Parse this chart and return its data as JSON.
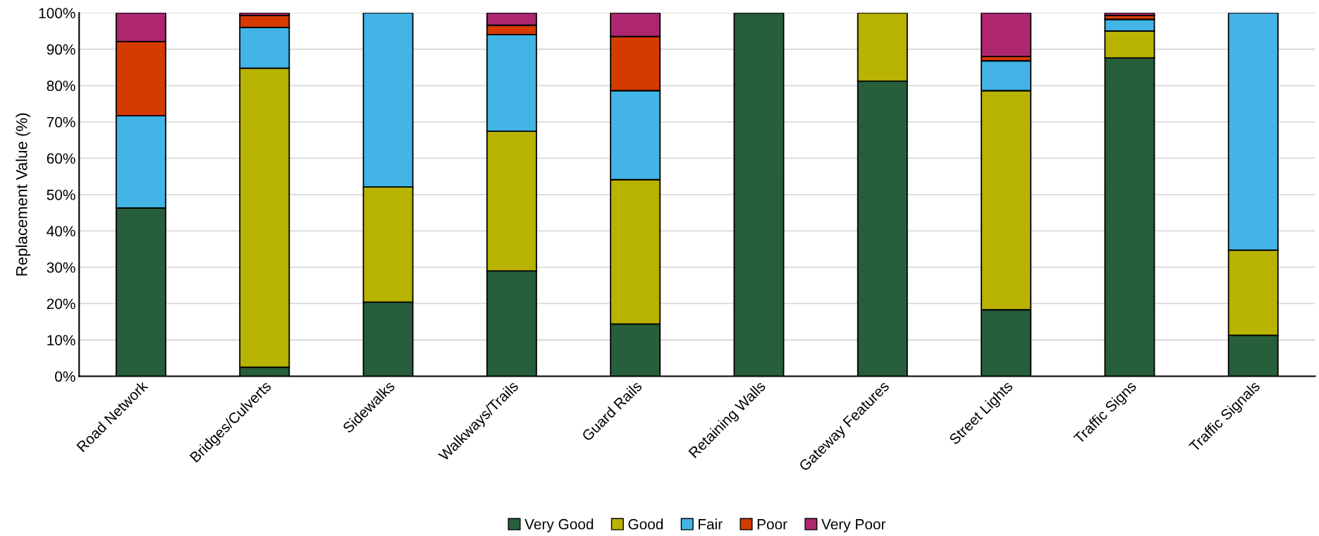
{
  "chart_data": {
    "type": "bar",
    "stacked": true,
    "ylabel": "Replacement Value (%)",
    "categories": [
      "Road Network",
      "Bridges/Culverts",
      "Sidewalks",
      "Walkways/Trails",
      "Guard Rails",
      "Retaining Walls",
      "Gateway Features",
      "Street Lights",
      "Traffic Signs",
      "Traffic Signals"
    ],
    "series": [
      {
        "name": "Very Good",
        "color": "#275e3b",
        "values": [
          46.3,
          2.5,
          20.4,
          29.0,
          14.4,
          100,
          81.2,
          18.3,
          87.6,
          11.3
        ]
      },
      {
        "name": "Good",
        "color": "#b8b200",
        "values": [
          0,
          82.3,
          31.7,
          38.4,
          39.7,
          0,
          18.8,
          60.3,
          7.4,
          23.4
        ]
      },
      {
        "name": "Fair",
        "color": "#42b4e6",
        "values": [
          25.4,
          11.2,
          47.9,
          26.6,
          24.5,
          0,
          0,
          8.2,
          3.2,
          65.3
        ]
      },
      {
        "name": "Poor",
        "color": "#d53a00",
        "values": [
          20.4,
          3.3,
          0,
          2.6,
          14.9,
          0,
          0,
          1.2,
          1.1,
          0
        ]
      },
      {
        "name": "Very Poor",
        "color": "#ae2570",
        "values": [
          7.9,
          0.7,
          0,
          3.4,
          6.5,
          0,
          0,
          12.0,
          0.7,
          0
        ]
      }
    ],
    "ylim": [
      0,
      100
    ],
    "yticks": [
      {
        "value": 0,
        "label": "0%"
      },
      {
        "value": 10,
        "label": "10%"
      },
      {
        "value": 20,
        "label": "20%"
      },
      {
        "value": 30,
        "label": "30%"
      },
      {
        "value": 40,
        "label": "40%"
      },
      {
        "value": 50,
        "label": "50%"
      },
      {
        "value": 60,
        "label": "60%"
      },
      {
        "value": 70,
        "label": "70%"
      },
      {
        "value": 80,
        "label": "80%"
      },
      {
        "value": 90,
        "label": "90%"
      },
      {
        "value": 100,
        "label": "100%"
      }
    ],
    "grid": "y",
    "legend": "bottom"
  }
}
